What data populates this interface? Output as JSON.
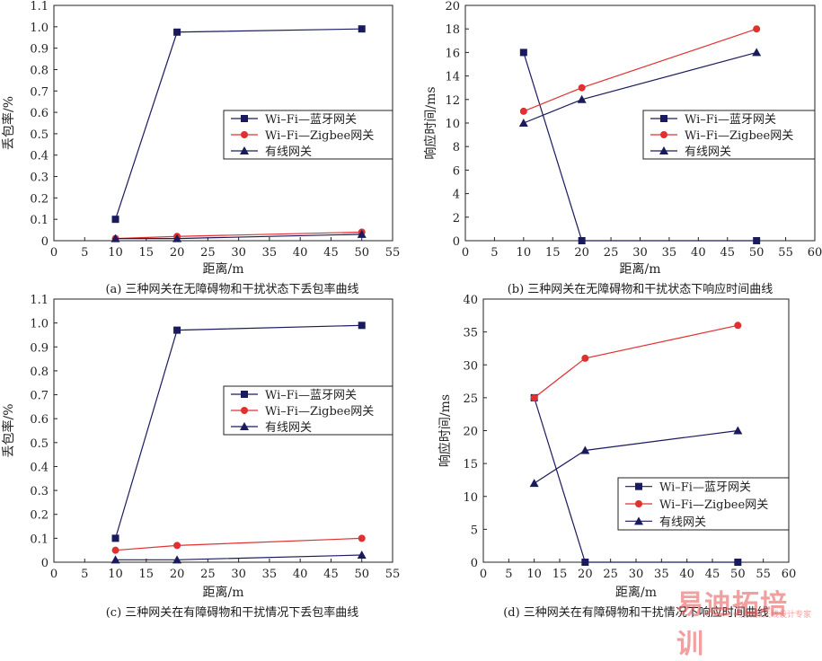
{
  "chart_data": [
    {
      "type": "line",
      "caption": "(a) 三种网关在无障碍物和干扰状态下丢包率曲线",
      "xlabel": "距离/m",
      "ylabel": "丢包率/%",
      "xlim": [
        0,
        55
      ],
      "ylim": [
        0,
        1.1
      ],
      "xticks": [
        0,
        5,
        10,
        15,
        20,
        25,
        30,
        35,
        40,
        45,
        50,
        55
      ],
      "yticks": [
        0,
        0.1,
        0.2,
        0.3,
        0.4,
        0.5,
        0.6,
        0.7,
        0.8,
        0.9,
        1.0,
        1.1
      ],
      "ytick_labels": [
        "0",
        "0.1",
        "0.2",
        "0.3",
        "0.4",
        "0.5",
        "0.6",
        "0.7",
        "0.8",
        "0.9",
        "1.0",
        "1.1"
      ],
      "grid": false,
      "legend_position": "middle-right",
      "series": [
        {
          "name": "Wi–Fi—蓝牙网关",
          "marker": "square",
          "color": "#1a1a5e",
          "x": [
            10,
            20,
            50
          ],
          "y": [
            0.1,
            0.975,
            0.99
          ]
        },
        {
          "name": "Wi–Fi—Zigbee网关",
          "marker": "circle",
          "color": "#e03030",
          "x": [
            10,
            20,
            50
          ],
          "y": [
            0.01,
            0.02,
            0.04
          ]
        },
        {
          "name": "有线网关",
          "marker": "triangle",
          "color": "#1a1a5e",
          "x": [
            10,
            20,
            50
          ],
          "y": [
            0.01,
            0.01,
            0.03
          ]
        }
      ]
    },
    {
      "type": "line",
      "caption": "(b) 三种网关在无障碍物和干扰状态下响应时间曲线",
      "xlabel": "距离/m",
      "ylabel": "响应时间/ms",
      "xlim": [
        0,
        60
      ],
      "ylim": [
        0,
        20
      ],
      "xticks": [
        0,
        5,
        10,
        15,
        20,
        25,
        30,
        35,
        40,
        45,
        50,
        55,
        60
      ],
      "yticks": [
        0,
        2,
        4,
        6,
        8,
        10,
        12,
        14,
        16,
        18,
        20
      ],
      "ytick_labels": [
        "0",
        "2",
        "4",
        "6",
        "8",
        "10",
        "12",
        "14",
        "16",
        "18",
        "20"
      ],
      "grid": false,
      "legend_position": "middle-right",
      "series": [
        {
          "name": "Wi–Fi—蓝牙网关",
          "marker": "square",
          "color": "#1a1a5e",
          "x": [
            10,
            20,
            50
          ],
          "y": [
            16,
            0,
            0
          ]
        },
        {
          "name": "Wi–Fi—Zigbee网关",
          "marker": "circle",
          "color": "#e03030",
          "x": [
            10,
            20,
            50
          ],
          "y": [
            11,
            13,
            18
          ]
        },
        {
          "name": "有线网关",
          "marker": "triangle",
          "color": "#1a1a5e",
          "x": [
            10,
            20,
            50
          ],
          "y": [
            10,
            12,
            16
          ]
        }
      ]
    },
    {
      "type": "line",
      "caption": "(c) 三种网关在有障碍物和干扰情况下丢包率曲线",
      "xlabel": "距离/m",
      "ylabel": "丢包率/%",
      "xlim": [
        0,
        55
      ],
      "ylim": [
        0,
        1.1
      ],
      "xticks": [
        0,
        5,
        10,
        15,
        20,
        25,
        30,
        35,
        40,
        45,
        50,
        55
      ],
      "yticks": [
        0,
        0.1,
        0.2,
        0.3,
        0.4,
        0.5,
        0.6,
        0.7,
        0.8,
        0.9,
        1.0,
        1.1
      ],
      "ytick_labels": [
        "0",
        "0.1",
        "0.2",
        "0.3",
        "0.4",
        "0.5",
        "0.6",
        "0.7",
        "0.8",
        "0.9",
        "1.0",
        "1.1"
      ],
      "grid": false,
      "legend_position": "middle-right",
      "series": [
        {
          "name": "Wi–Fi—蓝牙网关",
          "marker": "square",
          "color": "#1a1a5e",
          "x": [
            10,
            20,
            50
          ],
          "y": [
            0.1,
            0.97,
            0.99
          ]
        },
        {
          "name": "Wi–Fi—Zigbee网关",
          "marker": "circle",
          "color": "#e03030",
          "x": [
            10,
            20,
            50
          ],
          "y": [
            0.05,
            0.07,
            0.1
          ]
        },
        {
          "name": "有线网关",
          "marker": "triangle",
          "color": "#1a1a5e",
          "x": [
            10,
            20,
            50
          ],
          "y": [
            0.01,
            0.01,
            0.03
          ]
        }
      ]
    },
    {
      "type": "line",
      "caption": "(d) 三种网关在有障碍物和干扰情况下响应时间曲线",
      "xlabel": "距离/m",
      "ylabel": "响应时间/ms",
      "xlim": [
        0,
        60
      ],
      "ylim": [
        0,
        40
      ],
      "xticks": [
        0,
        5,
        10,
        15,
        20,
        25,
        30,
        35,
        40,
        45,
        50,
        55,
        60
      ],
      "yticks": [
        0,
        5,
        10,
        15,
        20,
        25,
        30,
        35,
        40
      ],
      "ytick_labels": [
        "0",
        "5",
        "10",
        "15",
        "20",
        "25",
        "30",
        "35",
        "40"
      ],
      "grid": false,
      "legend_position": "bottom-right",
      "series": [
        {
          "name": "Wi–Fi—蓝牙网关",
          "marker": "square",
          "color": "#1a1a5e",
          "x": [
            10,
            20,
            50
          ],
          "y": [
            25,
            0,
            0
          ]
        },
        {
          "name": "Wi–Fi—Zigbee网关",
          "marker": "circle",
          "color": "#e03030",
          "x": [
            10,
            20,
            50
          ],
          "y": [
            25,
            31,
            36
          ]
        },
        {
          "name": "有线网关",
          "marker": "triangle",
          "color": "#1a1a5e",
          "x": [
            10,
            20,
            50
          ],
          "y": [
            12,
            17,
            20
          ]
        }
      ]
    }
  ],
  "watermark": {
    "main": "易迪拓培训",
    "sub": "射频和天线设计专家"
  }
}
